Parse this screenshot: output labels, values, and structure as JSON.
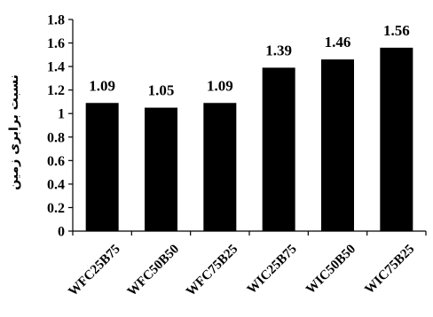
{
  "chart_data": {
    "type": "bar",
    "title": "",
    "xlabel": "",
    "ylabel": "نسبت برابری زمین",
    "categories": [
      "WFC25B75",
      "WFC50B50",
      "WFC75B25",
      "WIC25B75",
      "WIC50B50",
      "WIC75B25"
    ],
    "values": [
      1.09,
      1.05,
      1.09,
      1.39,
      1.46,
      1.56
    ],
    "data_labels": [
      "1.09",
      "1.05",
      "1.09",
      "1.39",
      "1.46",
      "1.56"
    ],
    "ylim": [
      0,
      1.8
    ],
    "yticks": [
      0,
      0.2,
      0.4,
      0.6,
      0.8,
      1,
      1.2,
      1.4,
      1.6,
      1.8
    ],
    "ytick_labels": [
      "0",
      "0.2",
      "0.4",
      "0.6",
      "0.8",
      "1",
      "1.2",
      "1.4",
      "1.6",
      "1.8"
    ],
    "grid": false,
    "legend": "none",
    "bar_color": "#000000"
  }
}
